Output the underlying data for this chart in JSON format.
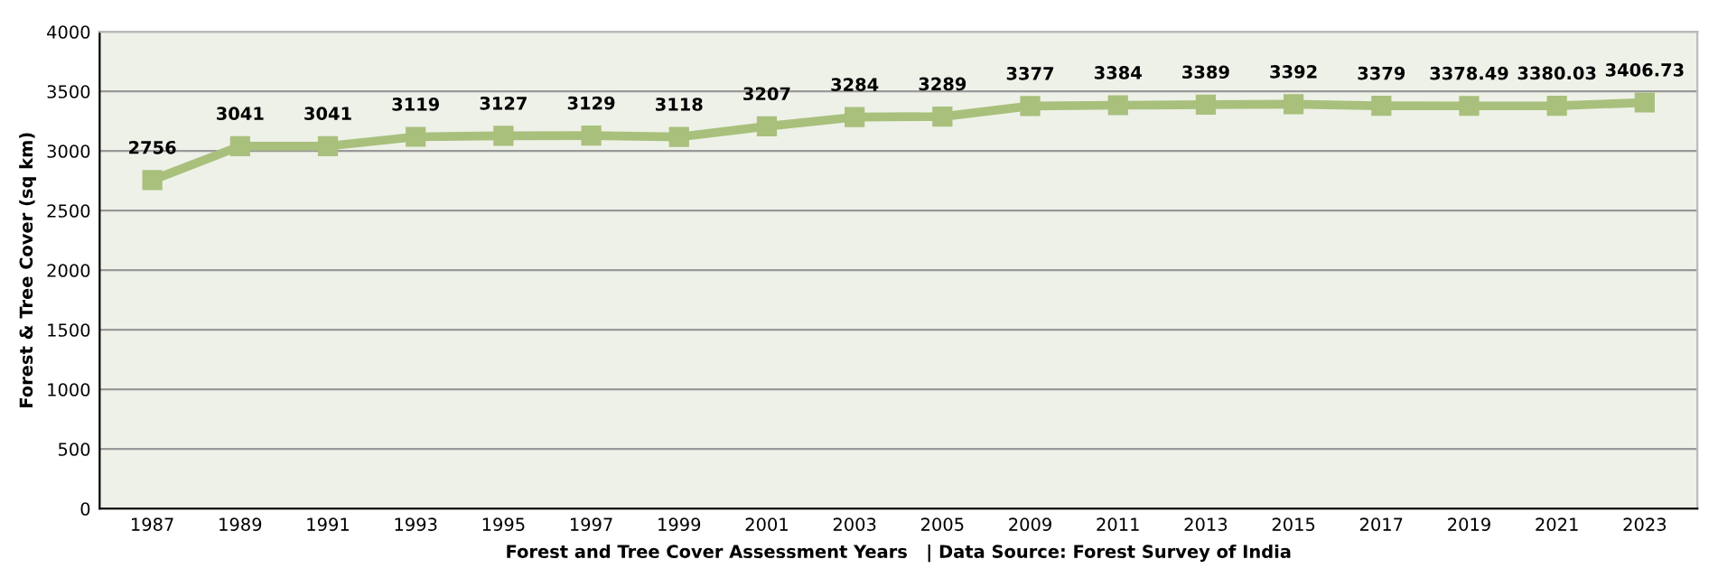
{
  "chart_data": {
    "type": "line",
    "xlabel": "Forest and Tree Cover Assessment Years   | Data Source: Forest Survey of India",
    "ylabel": "Forest & Tree Cover (sq km)",
    "categories": [
      "1987",
      "1989",
      "1991",
      "1993",
      "1995",
      "1997",
      "1999",
      "2001",
      "2003",
      "2005",
      "2009",
      "2011",
      "2013",
      "2015",
      "2017",
      "2019",
      "2021",
      "2023"
    ],
    "series": [
      {
        "color": "#a8c07c",
        "values": [
          2756,
          3041,
          3041,
          3119,
          3127,
          3129,
          3118,
          3207,
          3284,
          3289,
          3377,
          3384,
          3389,
          3392,
          3379,
          3378.49,
          3380.03,
          3406.73
        ]
      }
    ],
    "ylim": [
      0,
      4000
    ],
    "yticks": [
      0,
      500,
      1000,
      1500,
      2000,
      2500,
      3000,
      3500,
      4000
    ],
    "grid": "y",
    "legend": false,
    "marker": "square",
    "line_style": "solid",
    "data_labels": true
  }
}
